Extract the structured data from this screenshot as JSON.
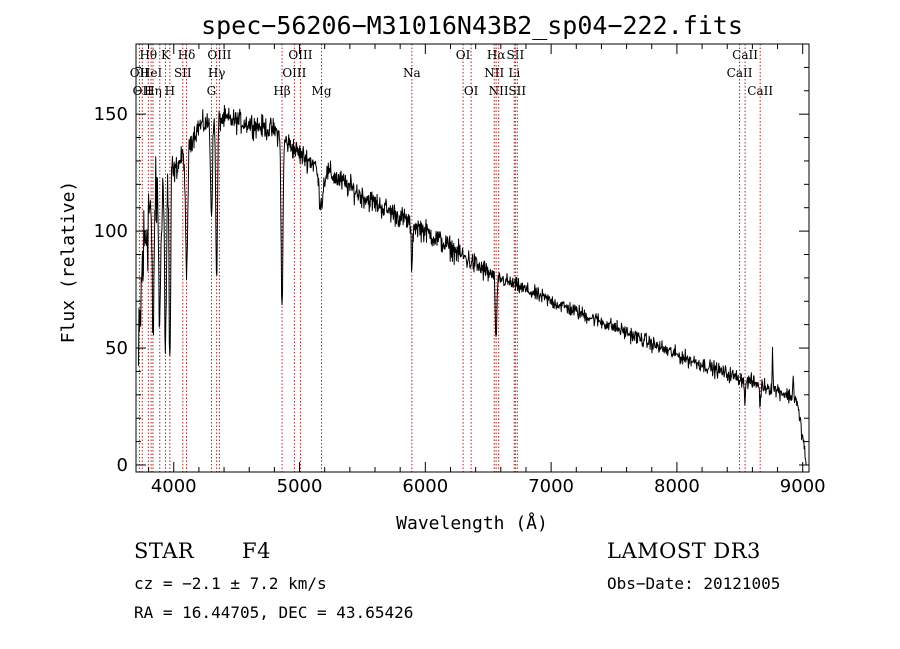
{
  "chart_data": {
    "type": "line",
    "title": "spec−56206−M31016N43B2_sp04−222.fits",
    "xlabel": "Wavelength (Å)",
    "ylabel": "Flux (relative)",
    "xlim": [
      3700,
      9050
    ],
    "ylim": [
      -3,
      180
    ],
    "x_ticks": [
      4000,
      5000,
      6000,
      7000,
      8000,
      9000
    ],
    "y_ticks": [
      0,
      50,
      100,
      150
    ],
    "continuum": [
      {
        "x": 3720,
        "y": 40
      },
      {
        "x": 3750,
        "y": 85
      },
      {
        "x": 3800,
        "y": 110
      },
      {
        "x": 3900,
        "y": 118
      },
      {
        "x": 4000,
        "y": 125
      },
      {
        "x": 4100,
        "y": 135
      },
      {
        "x": 4200,
        "y": 145
      },
      {
        "x": 4400,
        "y": 148
      },
      {
        "x": 4600,
        "y": 146
      },
      {
        "x": 4800,
        "y": 143
      },
      {
        "x": 5000,
        "y": 133
      },
      {
        "x": 5200,
        "y": 126
      },
      {
        "x": 5500,
        "y": 115
      },
      {
        "x": 6000,
        "y": 100
      },
      {
        "x": 6500,
        "y": 82
      },
      {
        "x": 7000,
        "y": 70
      },
      {
        "x": 7500,
        "y": 59
      },
      {
        "x": 8000,
        "y": 47
      },
      {
        "x": 8500,
        "y": 37
      },
      {
        "x": 8800,
        "y": 32
      },
      {
        "x": 8950,
        "y": 28
      },
      {
        "x": 9000,
        "y": 12
      },
      {
        "x": 9030,
        "y": 0
      }
    ],
    "absorption_features": [
      {
        "x": 3835,
        "depth": 60,
        "width": 10
      },
      {
        "x": 3889,
        "depth": 60,
        "width": 10
      },
      {
        "x": 3934,
        "depth": 75,
        "width": 9
      },
      {
        "x": 3969,
        "depth": 80,
        "width": 9
      },
      {
        "x": 4102,
        "depth": 55,
        "width": 12
      },
      {
        "x": 4300,
        "depth": 40,
        "width": 10
      },
      {
        "x": 4341,
        "depth": 70,
        "width": 9
      },
      {
        "x": 4861,
        "depth": 75,
        "width": 10
      },
      {
        "x": 5170,
        "depth": 15,
        "width": 25
      },
      {
        "x": 5893,
        "depth": 20,
        "width": 8
      },
      {
        "x": 6563,
        "depth": 28,
        "width": 9
      },
      {
        "x": 8542,
        "depth": 10,
        "width": 6
      },
      {
        "x": 8662,
        "depth": 10,
        "width": 6
      }
    ],
    "emission_features": [
      {
        "x": 8760,
        "height": 18,
        "width": 4
      },
      {
        "x": 8925,
        "height": 12,
        "width": 4
      }
    ],
    "noise": {
      "blue": 20,
      "mid": 6,
      "red": 4
    },
    "spectral_lines": [
      {
        "wavelength": 3727,
        "label": "OII",
        "row": 2
      },
      {
        "wavelength": 3750,
        "label": "OII",
        "row": 3
      },
      {
        "wavelength": 3798,
        "label": "Hθ",
        "row": 1
      },
      {
        "wavelength": 3820,
        "label": "HeI",
        "row": 2
      },
      {
        "wavelength": 3835,
        "label": "Hη",
        "row": 3
      },
      {
        "wavelength": 3889,
        "label": "",
        "row": 0
      },
      {
        "wavelength": 3934,
        "label": "K",
        "row": 1
      },
      {
        "wavelength": 3969,
        "label": "H",
        "row": 3
      },
      {
        "wavelength": 4072,
        "label": "SII",
        "row": 2
      },
      {
        "wavelength": 4102,
        "label": "Hδ",
        "row": 1
      },
      {
        "wavelength": 4300,
        "label": "G",
        "row": 3
      },
      {
        "wavelength": 4341,
        "label": "Hγ",
        "row": 2
      },
      {
        "wavelength": 4363,
        "label": "OIII",
        "row": 1
      },
      {
        "wavelength": 4861,
        "label": "Hβ",
        "row": 3
      },
      {
        "wavelength": 4959,
        "label": "OIII",
        "row": 2
      },
      {
        "wavelength": 5007,
        "label": "OIII",
        "row": 1
      },
      {
        "wavelength": 5175,
        "label": "Mg",
        "row": 3
      },
      {
        "wavelength": 5893,
        "label": "Na",
        "row": 2
      },
      {
        "wavelength": 6300,
        "label": "OI",
        "row": 1
      },
      {
        "wavelength": 6364,
        "label": "OI",
        "row": 3
      },
      {
        "wavelength": 6548,
        "label": "NII",
        "row": 2
      },
      {
        "wavelength": 6563,
        "label": "Hα",
        "row": 1
      },
      {
        "wavelength": 6583,
        "label": "NII",
        "row": 3
      },
      {
        "wavelength": 6707,
        "label": "Li",
        "row": 2
      },
      {
        "wavelength": 6716,
        "label": "SII",
        "row": 1
      },
      {
        "wavelength": 6731,
        "label": "SII",
        "row": 3
      },
      {
        "wavelength": 8498,
        "label": "CaII",
        "row": 2
      },
      {
        "wavelength": 8542,
        "label": "CaII",
        "row": 1
      },
      {
        "wavelength": 8662,
        "label": "CaII",
        "row": 3
      }
    ]
  },
  "info": {
    "object_type": "STAR",
    "subclass": "F4",
    "survey": "LAMOST DR3",
    "redshift": "cz = −2.1 ± 7.2 km/s",
    "obs_date": "Obs−Date: 20121005",
    "coords": "RA =  16.44705, DEC =  43.65426"
  },
  "colors": {
    "spectrum": "#000000",
    "line_marker": "#b22222",
    "axis": "#000000",
    "background": "#ffffff"
  }
}
